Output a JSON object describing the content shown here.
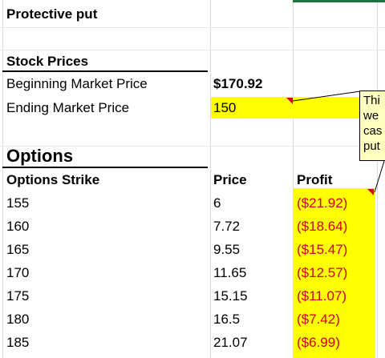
{
  "sheet": {
    "title": "Protective put",
    "stock_prices_header": "Stock Prices",
    "beginning_market_price_label": "Beginning Market Price",
    "beginning_market_price_value": "$170.92",
    "ending_market_price_label": "Ending Market Price",
    "ending_market_price_value": "150",
    "options_header": "Options",
    "columns": {
      "strike": "Options Strike",
      "price": "Price",
      "profit": "Profit"
    },
    "rows": [
      {
        "strike": "155",
        "price": "6",
        "profit": "($21.92)"
      },
      {
        "strike": "160",
        "price": "7.72",
        "profit": "($18.64)"
      },
      {
        "strike": "165",
        "price": "9.55",
        "profit": "($15.47)"
      },
      {
        "strike": "170",
        "price": "11.65",
        "profit": "($12.57)"
      },
      {
        "strike": "175",
        "price": "15.15",
        "profit": "($11.07)"
      },
      {
        "strike": "180",
        "price": "16.5",
        "profit": "($7.42)"
      },
      {
        "strike": "185",
        "price": "21.07",
        "profit": "($6.99)"
      }
    ]
  },
  "comment": {
    "lines": [
      "Thi",
      "we",
      "cas",
      "put"
    ]
  },
  "colors": {
    "highlight": "#ffff00",
    "negative": "#d0021b",
    "comment_bg": "#ffffc0",
    "top_accent": "#1e7145"
  }
}
